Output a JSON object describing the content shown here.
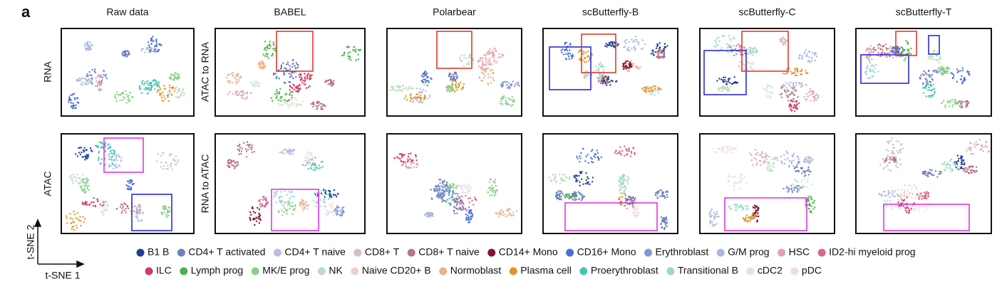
{
  "figure_label": "a",
  "columns": [
    "Raw data",
    "BABEL",
    "Polarbear",
    "scButterfly-B",
    "scButterfly-C",
    "scButterfly-T"
  ],
  "row_labels": {
    "raw": [
      "RNA",
      "ATAC"
    ],
    "translation": [
      "ATAC to RNA",
      "RNA to ATAC"
    ]
  },
  "axes": {
    "y": "t-SNE 2",
    "x": "t-SNE 1"
  },
  "legend": [
    [
      {
        "name": "B1 B",
        "color": "#1f3f99"
      },
      {
        "name": "CD4+ T activated",
        "color": "#6e7fbf"
      },
      {
        "name": "CD4+ T naive",
        "color": "#b9bde0"
      },
      {
        "name": "CD8+ T",
        "color": "#d6bfc5"
      },
      {
        "name": "CD8+ T naive",
        "color": "#b87480"
      },
      {
        "name": "CD14+ Mono",
        "color": "#7f1734"
      },
      {
        "name": "CD16+ Mono",
        "color": "#4a6fd6"
      },
      {
        "name": "Erythroblast",
        "color": "#8096d6"
      },
      {
        "name": "G/M prog",
        "color": "#aab8e0"
      },
      {
        "name": "HSC",
        "color": "#dfa5b2"
      },
      {
        "name": "ID2-hi myeloid prog",
        "color": "#d46a8a"
      }
    ],
    [
      {
        "name": "ILC",
        "color": "#d13d62"
      },
      {
        "name": "Lymph prog",
        "color": "#48b548"
      },
      {
        "name": "MK/E prog",
        "color": "#8ccf8a"
      },
      {
        "name": "NK",
        "color": "#bcdcbc"
      },
      {
        "name": "Naive CD20+ B",
        "color": "#ebd4c6"
      },
      {
        "name": "Normoblast",
        "color": "#e9b48c"
      },
      {
        "name": "Plasma cell",
        "color": "#e0952e"
      },
      {
        "name": "Proerythroblast",
        "color": "#4cc2b4"
      },
      {
        "name": "Transitional B",
        "color": "#9ed8cc"
      },
      {
        "name": "cDC2",
        "color": "#d2ebe2"
      },
      {
        "name": "pDC",
        "color": "#f1dbe6"
      }
    ]
  ]
}
